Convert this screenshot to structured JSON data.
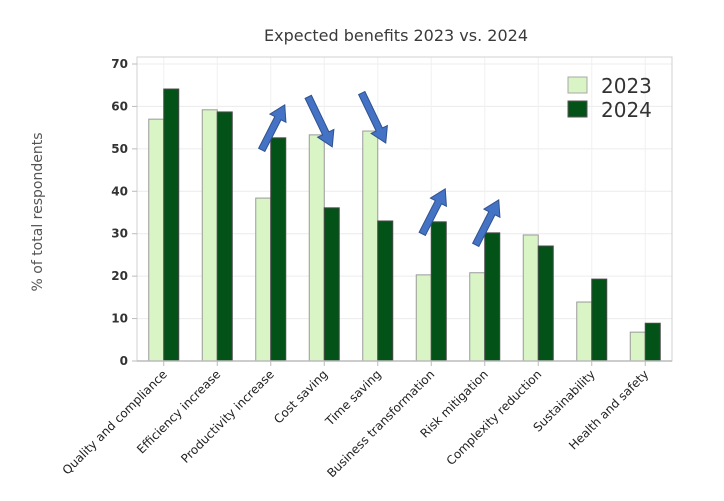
{
  "chart_data": {
    "type": "bar",
    "title": "Expected benefits 2023 vs. 2024",
    "xlabel": "",
    "ylabel": "% of total respondents",
    "ylim": [
      0,
      70
    ],
    "yticks": [
      0,
      10,
      20,
      30,
      40,
      50,
      60,
      70
    ],
    "grid": true,
    "legend_position": "top-right",
    "categories": [
      "Quality and compliance",
      "Efficiency increase",
      "Productivity increase",
      "Cost saving",
      "Time saving",
      "Business transformation",
      "Risk mitigation",
      "Complexity reduction",
      "Sustainability",
      "Health and safety"
    ],
    "series": [
      {
        "name": "2023",
        "color": "#d9f5c5",
        "values": [
          57.0,
          59.2,
          38.4,
          53.3,
          54.2,
          20.3,
          20.8,
          29.7,
          13.9,
          6.8
        ]
      },
      {
        "name": "2024",
        "color": "#035218",
        "values": [
          64.1,
          58.7,
          52.6,
          36.1,
          33.0,
          32.8,
          30.2,
          27.1,
          19.3,
          8.9
        ]
      }
    ],
    "annotations": [
      {
        "type": "arrow",
        "direction": "up",
        "category": "Productivity increase",
        "color": "#4472c4"
      },
      {
        "type": "arrow",
        "direction": "down",
        "category": "Cost saving",
        "color": "#4472c4"
      },
      {
        "type": "arrow",
        "direction": "down",
        "category": "Time saving",
        "color": "#4472c4"
      },
      {
        "type": "arrow",
        "direction": "up",
        "category": "Business transformation",
        "color": "#4472c4"
      },
      {
        "type": "arrow",
        "direction": "up",
        "category": "Risk mitigation",
        "color": "#4472c4"
      }
    ]
  }
}
